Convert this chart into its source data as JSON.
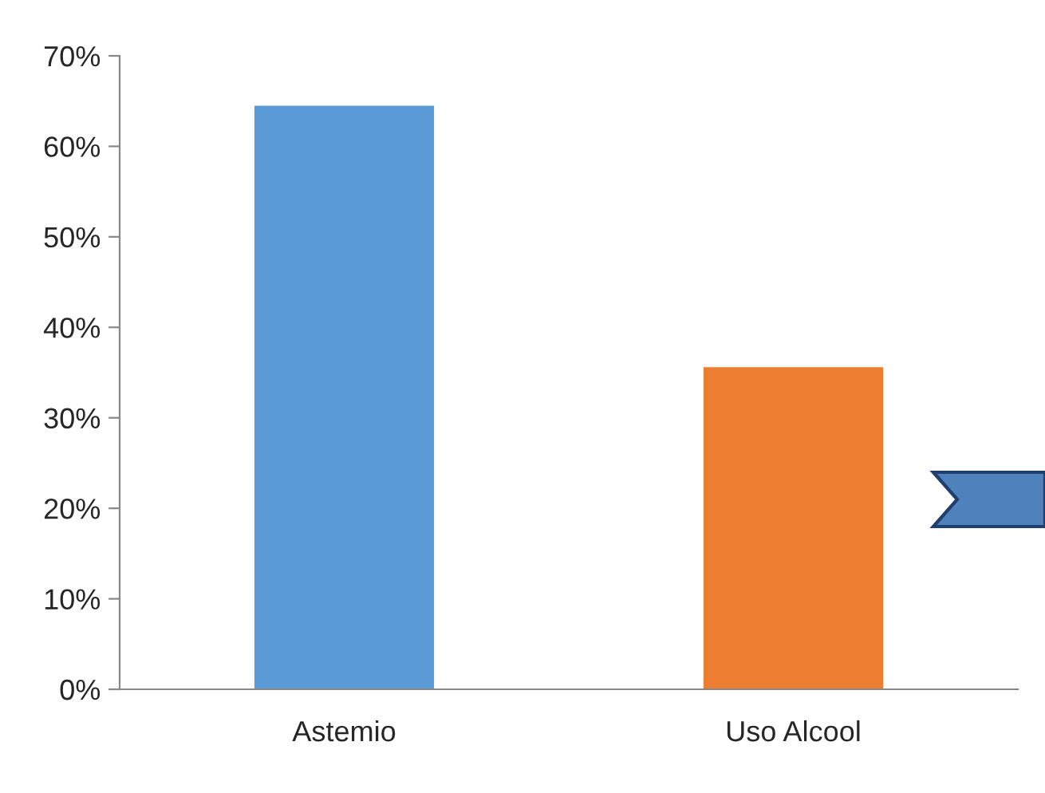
{
  "chart_data": {
    "type": "bar",
    "categories": [
      "Astemio",
      "Uso Alcool"
    ],
    "values": [
      64.5,
      35.6
    ],
    "colors": [
      "#5b9bd5",
      "#ed7d31"
    ],
    "ylim": [
      0,
      70
    ],
    "yticks": [
      {
        "value": 0,
        "label": "0%"
      },
      {
        "value": 10,
        "label": "10%"
      },
      {
        "value": 20,
        "label": "20%"
      },
      {
        "value": 30,
        "label": "30%"
      },
      {
        "value": 40,
        "label": "40%"
      },
      {
        "value": 50,
        "label": "50%"
      },
      {
        "value": 60,
        "label": "60%"
      },
      {
        "value": 70,
        "label": "70%"
      }
    ],
    "grid": false,
    "legend": false
  }
}
